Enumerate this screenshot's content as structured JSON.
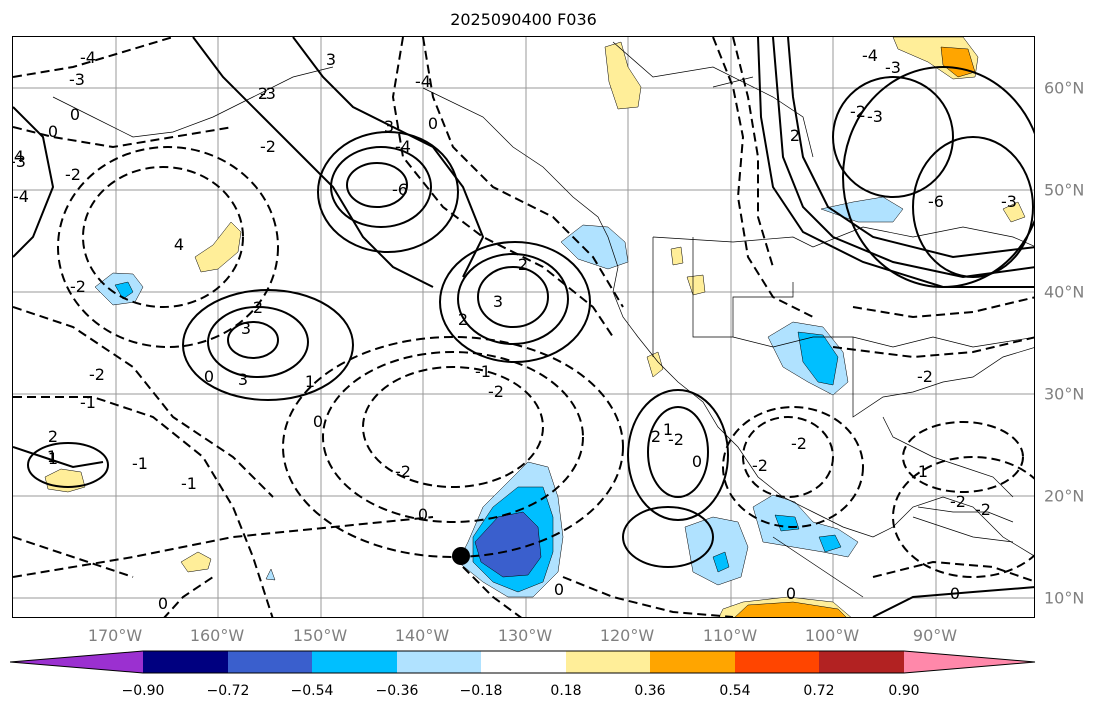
{
  "title": "2025090400 F036",
  "lon_ticks": [
    "170°W",
    "160°W",
    "150°W",
    "140°W",
    "130°W",
    "120°W",
    "110°W",
    "100°W",
    "90°W"
  ],
  "lat_ticks": [
    "60°N",
    "50°N",
    "40°N",
    "30°N",
    "20°N",
    "10°N"
  ],
  "colorbar": {
    "labels": [
      "−0.90",
      "−0.72",
      "−0.54",
      "−0.36",
      "−0.18",
      "0.18",
      "0.36",
      "0.54",
      "0.72",
      "0.90"
    ],
    "colors": [
      "#9b30d0",
      "#000080",
      "#3a5fcd",
      "#00bfff",
      "#b0e2ff",
      "#ffffff",
      "#ffee99",
      "#ffa500",
      "#ff4500",
      "#b22222",
      "#ff88aa"
    ]
  },
  "contour_labels": [
    "-4",
    "-3",
    "0",
    "-2",
    "2",
    "-3",
    "-4",
    "3",
    "0",
    "3",
    "-4",
    "-2",
    "0",
    "-3",
    "-4",
    "-6",
    "4",
    "3",
    "2",
    "2",
    "3",
    "1",
    "-2",
    "2",
    "3",
    "-2",
    "4",
    "0",
    "-2",
    "-1",
    "-1",
    "0",
    "1",
    "2",
    "1",
    "-1",
    "-2",
    "0",
    "-1",
    "0",
    "-2",
    "1",
    "2",
    "0",
    "-2",
    "-2",
    "0",
    "0",
    "0",
    "-2",
    "-2",
    "-2",
    "-4",
    "-2",
    "-3",
    "-3",
    "-6",
    "2",
    "-3",
    "1"
  ],
  "marker": "black-dot"
}
